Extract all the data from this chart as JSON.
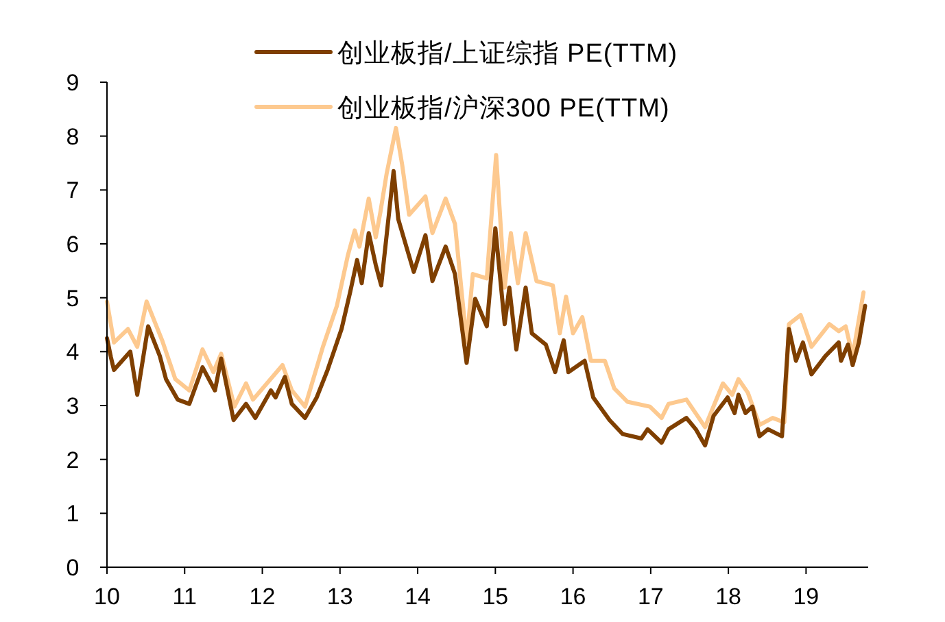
{
  "chart_data": {
    "type": "line",
    "xlim": [
      10,
      19.8
    ],
    "xticks": [
      10,
      11,
      12,
      13,
      14,
      15,
      16,
      17,
      18,
      19
    ],
    "ylim": [
      0,
      9
    ],
    "yticks": [
      0,
      1,
      2,
      3,
      4,
      5,
      6,
      7,
      8,
      9
    ],
    "grid": false,
    "legend": "top",
    "marker": "none",
    "line_style": "solid",
    "series": [
      {
        "name": "创业板指/上证综指 PE(TTM)",
        "color": "#7f3f00",
        "x": [
          10.0,
          10.05,
          10.09,
          10.3,
          10.39,
          10.53,
          10.68,
          10.76,
          10.91,
          11.06,
          11.23,
          11.39,
          11.47,
          11.63,
          11.79,
          11.91,
          12.11,
          12.17,
          12.29,
          12.38,
          12.55,
          12.7,
          12.84,
          13.02,
          13.13,
          13.22,
          13.28,
          13.37,
          13.46,
          13.53,
          13.69,
          13.75,
          13.87,
          13.95,
          14.1,
          14.19,
          14.36,
          14.48,
          14.63,
          14.74,
          14.89,
          15.0,
          15.12,
          15.18,
          15.27,
          15.39,
          15.47,
          15.65,
          15.77,
          15.88,
          15.94,
          16.15,
          16.26,
          16.47,
          16.64,
          16.88,
          16.96,
          17.14,
          17.23,
          17.46,
          17.58,
          17.7,
          17.81,
          17.99,
          18.08,
          18.13,
          18.22,
          18.31,
          18.4,
          18.51,
          18.69,
          18.78,
          18.87,
          18.96,
          19.07,
          19.25,
          19.42,
          19.45,
          19.54,
          19.6,
          19.68,
          19.76
        ],
        "values": [
          4.25,
          3.9,
          3.66,
          4.0,
          3.2,
          4.47,
          3.92,
          3.49,
          3.11,
          3.03,
          3.71,
          3.28,
          3.87,
          2.73,
          3.03,
          2.77,
          3.28,
          3.15,
          3.53,
          3.03,
          2.77,
          3.15,
          3.66,
          4.42,
          5.1,
          5.7,
          5.27,
          6.2,
          5.61,
          5.23,
          7.35,
          6.46,
          5.87,
          5.48,
          6.16,
          5.31,
          5.95,
          5.44,
          3.79,
          4.98,
          4.47,
          6.29,
          4.51,
          5.19,
          4.04,
          5.19,
          4.34,
          4.13,
          3.62,
          4.21,
          3.62,
          3.83,
          3.15,
          2.73,
          2.47,
          2.39,
          2.56,
          2.31,
          2.56,
          2.77,
          2.56,
          2.26,
          2.81,
          3.15,
          2.86,
          3.2,
          2.86,
          2.98,
          2.43,
          2.56,
          2.43,
          4.42,
          3.83,
          4.17,
          3.58,
          3.92,
          4.17,
          3.83,
          4.13,
          3.75,
          4.17,
          4.85
        ]
      },
      {
        "name": "创业板指/沪深300 PE(TTM)",
        "color": "#fdc98f",
        "x": [
          10.0,
          10.09,
          10.27,
          10.39,
          10.51,
          10.71,
          10.88,
          11.06,
          11.23,
          11.37,
          11.47,
          11.64,
          11.79,
          11.88,
          12.26,
          12.38,
          12.55,
          12.78,
          12.96,
          13.1,
          13.19,
          13.25,
          13.37,
          13.46,
          13.52,
          13.6,
          13.72,
          13.8,
          13.89,
          14.1,
          14.19,
          14.36,
          14.48,
          14.63,
          14.71,
          14.89,
          15.01,
          15.12,
          15.2,
          15.29,
          15.39,
          15.53,
          15.74,
          15.83,
          15.91,
          16.0,
          16.12,
          16.23,
          16.41,
          16.53,
          16.7,
          16.99,
          17.14,
          17.23,
          17.46,
          17.7,
          17.93,
          18.05,
          18.13,
          18.25,
          18.4,
          18.57,
          18.72,
          18.78,
          18.93,
          19.07,
          19.3,
          19.42,
          19.51,
          19.6,
          19.74
        ],
        "values": [
          4.93,
          4.17,
          4.42,
          4.09,
          4.93,
          4.21,
          3.49,
          3.28,
          4.04,
          3.62,
          3.96,
          2.98,
          3.41,
          3.11,
          3.75,
          3.28,
          2.98,
          4.09,
          4.85,
          5.78,
          6.25,
          5.95,
          6.84,
          6.12,
          6.59,
          7.3,
          8.15,
          7.47,
          6.54,
          6.88,
          6.2,
          6.84,
          6.37,
          4.17,
          5.44,
          5.36,
          7.65,
          5.19,
          6.2,
          5.27,
          6.2,
          5.31,
          5.23,
          4.34,
          5.02,
          4.34,
          4.64,
          3.83,
          3.83,
          3.32,
          3.07,
          2.98,
          2.77,
          3.03,
          3.11,
          2.6,
          3.41,
          3.2,
          3.49,
          3.24,
          2.64,
          2.77,
          2.69,
          4.51,
          4.68,
          4.09,
          4.51,
          4.38,
          4.47,
          3.92,
          5.1
        ]
      }
    ]
  }
}
